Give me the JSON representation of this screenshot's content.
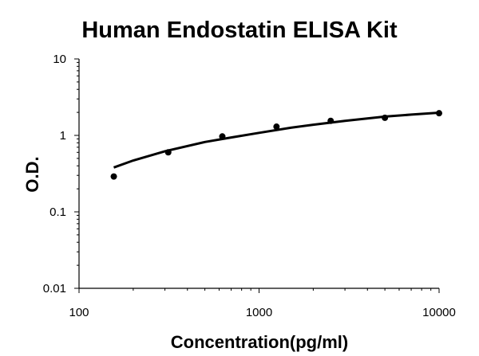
{
  "chart_data": {
    "type": "scatter",
    "title": "Human Endostatin ELISA Kit",
    "xlabel": "Concentration(pg/ml)",
    "ylabel": "O.D.",
    "x_scale": "log",
    "y_scale": "log",
    "xlim": [
      100,
      10000
    ],
    "ylim": [
      0.01,
      10
    ],
    "x_ticks": [
      "100",
      "1000",
      "10000"
    ],
    "y_ticks": [
      "10",
      "1",
      "0.1",
      "0.01"
    ],
    "grid": false,
    "legend": "none",
    "series": [
      {
        "x": [
          156,
          313,
          625,
          1250,
          2500,
          5000,
          10000
        ],
        "y": [
          0.29,
          0.6,
          0.97,
          1.3,
          1.55,
          1.7,
          1.95
        ]
      }
    ],
    "fit_curve": {
      "x": [
        156,
        200,
        300,
        500,
        700,
        1000,
        1500,
        2000,
        3000,
        5000,
        7000,
        10000
      ],
      "y": [
        0.38,
        0.47,
        0.62,
        0.82,
        0.94,
        1.08,
        1.26,
        1.38,
        1.55,
        1.76,
        1.87,
        1.98
      ]
    },
    "colors": {
      "line": "#000000",
      "points": "#000000"
    }
  }
}
